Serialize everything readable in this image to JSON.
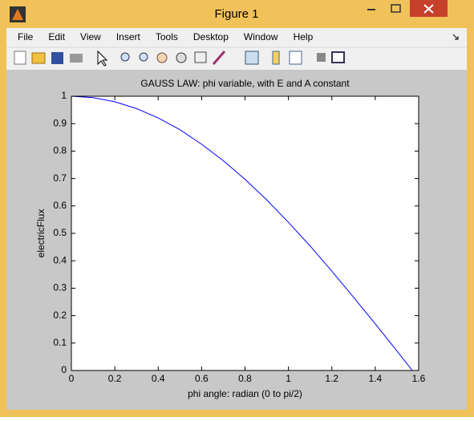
{
  "window": {
    "title": "Figure 1",
    "menu": [
      "File",
      "Edit",
      "View",
      "Insert",
      "Tools",
      "Desktop",
      "Window",
      "Help"
    ]
  },
  "chart_data": {
    "type": "line",
    "title": "GAUSS LAW: phi variable, with E and A constant",
    "x_label": "phi angle: radian (0 to pi/2)",
    "y_label": "electricFlux",
    "x": [
      0,
      0.1,
      0.2,
      0.3,
      0.4,
      0.5,
      0.6,
      0.7,
      0.8,
      0.9,
      1.0,
      1.1,
      1.2,
      1.3,
      1.4,
      1.5,
      1.5708
    ],
    "series": [
      {
        "name": "electricFlux",
        "color": "#0000ff",
        "values": [
          1,
          0.995,
          0.98,
          0.955,
          0.921,
          0.878,
          0.825,
          0.765,
          0.697,
          0.622,
          0.54,
          0.454,
          0.362,
          0.267,
          0.17,
          0.071,
          0
        ]
      }
    ],
    "xlim": [
      0,
      1.6
    ],
    "xticks": [
      0,
      0.2,
      0.4,
      0.6,
      0.8,
      1,
      1.2,
      1.4,
      1.6
    ],
    "ylim": [
      0,
      1
    ],
    "yticks": [
      0,
      0.1,
      0.2,
      0.3,
      0.4,
      0.5,
      0.6,
      0.7,
      0.8,
      0.9,
      1
    ]
  }
}
